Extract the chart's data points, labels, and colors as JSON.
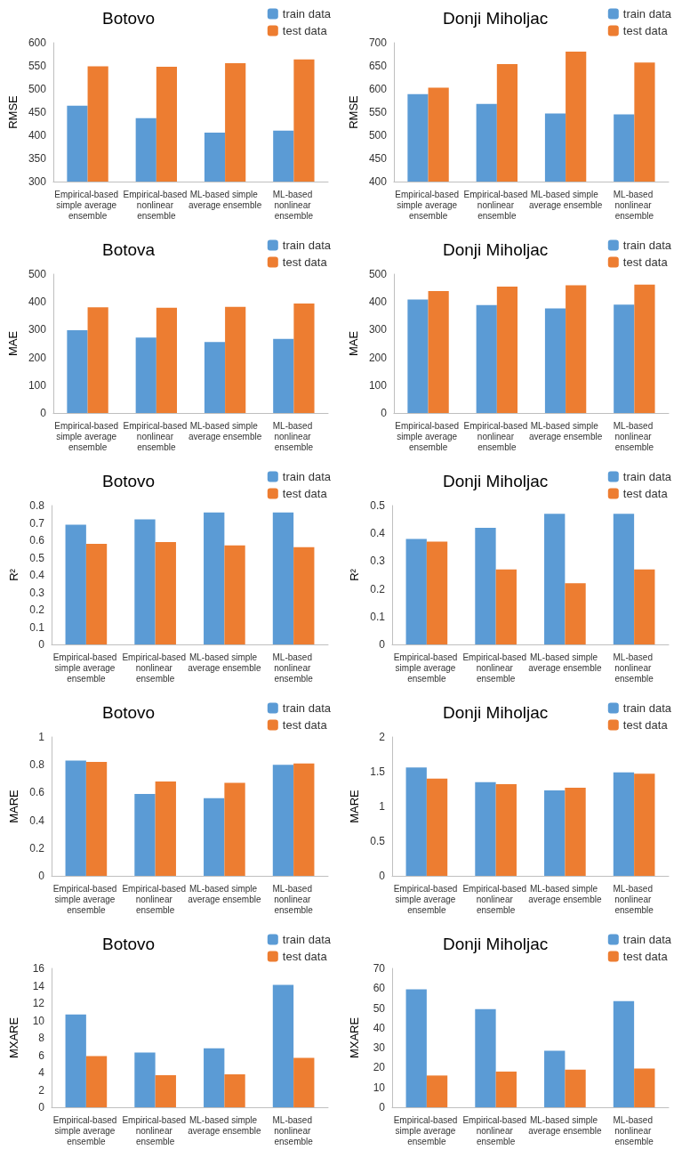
{
  "chart_data": [
    {
      "type": "bar",
      "title": "Botovo",
      "ylabel": "RMSE",
      "categories": [
        "Empirical-based simple average ensemble",
        "Empirical-based nonlinear ensemble",
        "ML-based simple average ensemble",
        "ML-based nonlinear ensemble"
      ],
      "series": [
        {
          "name": "train data",
          "color": "#5b9bd5",
          "values": [
            464,
            437,
            406,
            410
          ]
        },
        {
          "name": "test data",
          "color": "#ed7d31",
          "values": [
            549,
            548,
            556,
            564
          ]
        }
      ],
      "ylim": [
        300,
        600
      ],
      "yticks": [
        300,
        350,
        400,
        450,
        500,
        550,
        600
      ],
      "grid": false,
      "legend": "top right"
    },
    {
      "type": "bar",
      "title": "Donji Miholjac",
      "ylabel": "RMSE",
      "categories": [
        "Empirical-based simple average ensemble",
        "Empirical-based nonlinear ensemble",
        "ML-based simple average ensemble",
        "ML-based nonlinear ensemble"
      ],
      "series": [
        {
          "name": "train data",
          "color": "#5b9bd5",
          "values": [
            589,
            568,
            547,
            545
          ]
        },
        {
          "name": "test data",
          "color": "#ed7d31",
          "values": [
            603,
            654,
            681,
            657
          ]
        }
      ],
      "ylim": [
        400,
        700
      ],
      "yticks": [
        400,
        450,
        500,
        550,
        600,
        650,
        700
      ],
      "grid": false,
      "legend": "top right"
    },
    {
      "type": "bar",
      "title": "Botova",
      "ylabel": "MAE",
      "categories": [
        "Empirical-based simple average ensemble",
        "Empirical-based nonlinear ensemble",
        "ML-based simple average ensemble",
        "ML-based nonlinear ensemble"
      ],
      "series": [
        {
          "name": "train data",
          "color": "#5b9bd5",
          "values": [
            298,
            272,
            256,
            267
          ]
        },
        {
          "name": "test data",
          "color": "#ed7d31",
          "values": [
            381,
            379,
            382,
            394
          ]
        }
      ],
      "ylim": [
        0,
        500
      ],
      "yticks": [
        0,
        100,
        200,
        300,
        400,
        500
      ],
      "grid": false,
      "legend": "top right"
    },
    {
      "type": "bar",
      "title": "Donji Miholjac",
      "ylabel": "MAE",
      "categories": [
        "Empirical-based simple average ensemble",
        "Empirical-based nonlinear ensemble",
        "ML-based simple average ensemble",
        "ML-based nonlinear ensemble"
      ],
      "series": [
        {
          "name": "train data",
          "color": "#5b9bd5",
          "values": [
            409,
            389,
            377,
            390
          ]
        },
        {
          "name": "test data",
          "color": "#ed7d31",
          "values": [
            439,
            455,
            460,
            462
          ]
        }
      ],
      "ylim": [
        0,
        500
      ],
      "yticks": [
        0,
        100,
        200,
        300,
        400,
        500
      ],
      "grid": false,
      "legend": "top right"
    },
    {
      "type": "bar",
      "title": "Botovo",
      "ylabel": "R²",
      "categories": [
        "Empirical-based simple average ensemble",
        "Empirical-based nonlinear ensemble",
        "ML-based simple average ensemble",
        "ML-based nonlinear ensemble"
      ],
      "series": [
        {
          "name": "train data",
          "color": "#5b9bd5",
          "values": [
            0.69,
            0.72,
            0.76,
            0.76
          ]
        },
        {
          "name": "test data",
          "color": "#ed7d31",
          "values": [
            0.58,
            0.59,
            0.57,
            0.56
          ]
        }
      ],
      "ylim": [
        0,
        0.8
      ],
      "yticks": [
        0,
        0.1,
        0.2,
        0.3,
        0.4,
        0.5,
        0.6,
        0.7,
        0.8
      ],
      "grid": false,
      "legend": "top right"
    },
    {
      "type": "bar",
      "title": "Donji Miholjac",
      "ylabel": "R²",
      "categories": [
        "Empirical-based simple average ensemble",
        "Empirical-based nonlinear ensemble",
        "ML-based simple average ensemble",
        "ML-based nonlinear ensemble"
      ],
      "series": [
        {
          "name": "train data",
          "color": "#5b9bd5",
          "values": [
            0.38,
            0.42,
            0.47,
            0.47
          ]
        },
        {
          "name": "test data",
          "color": "#ed7d31",
          "values": [
            0.37,
            0.27,
            0.22,
            0.27
          ]
        }
      ],
      "ylim": [
        0,
        0.5
      ],
      "yticks": [
        0,
        0.1,
        0.2,
        0.3,
        0.4,
        0.5
      ],
      "grid": false,
      "legend": "top right"
    },
    {
      "type": "bar",
      "title": "Botovo",
      "ylabel": "MARE",
      "categories": [
        "Empirical-based simple average ensemble",
        "Empirical-based nonlinear ensemble",
        "ML-based simple average ensemble",
        "ML-based nonlinear ensemble"
      ],
      "series": [
        {
          "name": "train data",
          "color": "#5b9bd5",
          "values": [
            0.83,
            0.59,
            0.56,
            0.8
          ]
        },
        {
          "name": "test data",
          "color": "#ed7d31",
          "values": [
            0.82,
            0.68,
            0.67,
            0.81
          ]
        }
      ],
      "ylim": [
        0,
        1
      ],
      "yticks": [
        0,
        0.2,
        0.4,
        0.6,
        0.8,
        1
      ],
      "grid": false,
      "legend": "top right"
    },
    {
      "type": "bar",
      "title": "Donji Miholjac",
      "ylabel": "MARE",
      "categories": [
        "Empirical-based simple average ensemble",
        "Empirical-based nonlinear ensemble",
        "ML-based simple average ensemble",
        "ML-based nonlinear ensemble"
      ],
      "series": [
        {
          "name": "train data",
          "color": "#5b9bd5",
          "values": [
            1.56,
            1.35,
            1.23,
            1.49
          ]
        },
        {
          "name": "test data",
          "color": "#ed7d31",
          "values": [
            1.4,
            1.32,
            1.27,
            1.47
          ]
        }
      ],
      "ylim": [
        0,
        2
      ],
      "yticks": [
        0,
        0.5,
        1,
        1.5,
        2
      ],
      "grid": false,
      "legend": "top right"
    },
    {
      "type": "bar",
      "title": "Botovo",
      "ylabel": "MXARE",
      "categories": [
        "Empirical-based simple average ensemble",
        "Empirical-based nonlinear ensemble",
        "ML-based simple average ensemble",
        "ML-based nonlinear ensemble"
      ],
      "series": [
        {
          "name": "train data",
          "color": "#5b9bd5",
          "values": [
            10.7,
            6.3,
            6.8,
            14.1
          ]
        },
        {
          "name": "test data",
          "color": "#ed7d31",
          "values": [
            5.9,
            3.7,
            3.8,
            5.7
          ]
        }
      ],
      "ylim": [
        0,
        16
      ],
      "yticks": [
        0,
        2,
        4,
        6,
        8,
        10,
        12,
        14,
        16
      ],
      "grid": false,
      "legend": "top right"
    },
    {
      "type": "bar",
      "title": "Donji Miholjac",
      "ylabel": "MXARE",
      "categories": [
        "Empirical-based simple average ensemble",
        "Empirical-based nonlinear ensemble",
        "ML-based simple average ensemble",
        "ML-based nonlinear ensemble"
      ],
      "series": [
        {
          "name": "train data",
          "color": "#5b9bd5",
          "values": [
            59.5,
            49.5,
            28.5,
            53.5
          ]
        },
        {
          "name": "test data",
          "color": "#ed7d31",
          "values": [
            16,
            18,
            19,
            19.5
          ]
        }
      ],
      "ylim": [
        0,
        70
      ],
      "yticks": [
        0,
        10,
        20,
        30,
        40,
        50,
        60,
        70
      ],
      "grid": false,
      "legend": "top right"
    }
  ]
}
